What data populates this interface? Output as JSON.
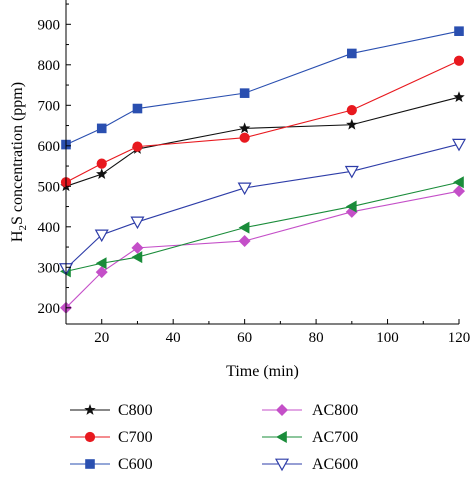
{
  "chart_data": {
    "type": "line",
    "xlabel": "Time (min)",
    "ylabel_main": "H",
    "ylabel_sub": "2",
    "ylabel_rest": "S concentration (ppm)",
    "x_ticks": [
      "20",
      "40",
      "60",
      "80",
      "100",
      "120"
    ],
    "y_ticks": [
      "200",
      "300",
      "400",
      "500",
      "600",
      "700",
      "800",
      "900"
    ],
    "xlim": [
      10,
      120
    ],
    "ylim": [
      160,
      960
    ],
    "grid": false,
    "legend_position": "bottom",
    "series": [
      {
        "name": "C800",
        "color": "#111111",
        "marker": "star",
        "x": [
          10,
          20,
          30,
          60,
          90,
          120
        ],
        "y": [
          500,
          530,
          592,
          643,
          652,
          720
        ]
      },
      {
        "name": "C700",
        "color": "#e8191f",
        "marker": "circle",
        "x": [
          10,
          20,
          30,
          60,
          90,
          120
        ],
        "y": [
          510,
          556,
          598,
          620,
          688,
          810
        ]
      },
      {
        "name": "C600",
        "color": "#2a4fb0",
        "marker": "square",
        "x": [
          10,
          20,
          30,
          60,
          90,
          120
        ],
        "y": [
          603,
          643,
          692,
          730,
          828,
          883
        ]
      },
      {
        "name": "AC800",
        "color": "#c44fc8",
        "marker": "diamond",
        "x": [
          10,
          20,
          30,
          60,
          90,
          120
        ],
        "y": [
          200,
          288,
          348,
          365,
          437,
          488
        ]
      },
      {
        "name": "AC700",
        "color": "#1a8c3a",
        "marker": "triangle-left",
        "x": [
          10,
          20,
          30,
          60,
          90,
          120
        ],
        "y": [
          290,
          310,
          325,
          398,
          450,
          510
        ]
      },
      {
        "name": "AC600",
        "color": "#2e3da8",
        "marker": "triangle-down",
        "x": [
          10,
          20,
          30,
          60,
          90,
          120
        ],
        "y": [
          297,
          380,
          412,
          496,
          537,
          604
        ]
      }
    ]
  }
}
